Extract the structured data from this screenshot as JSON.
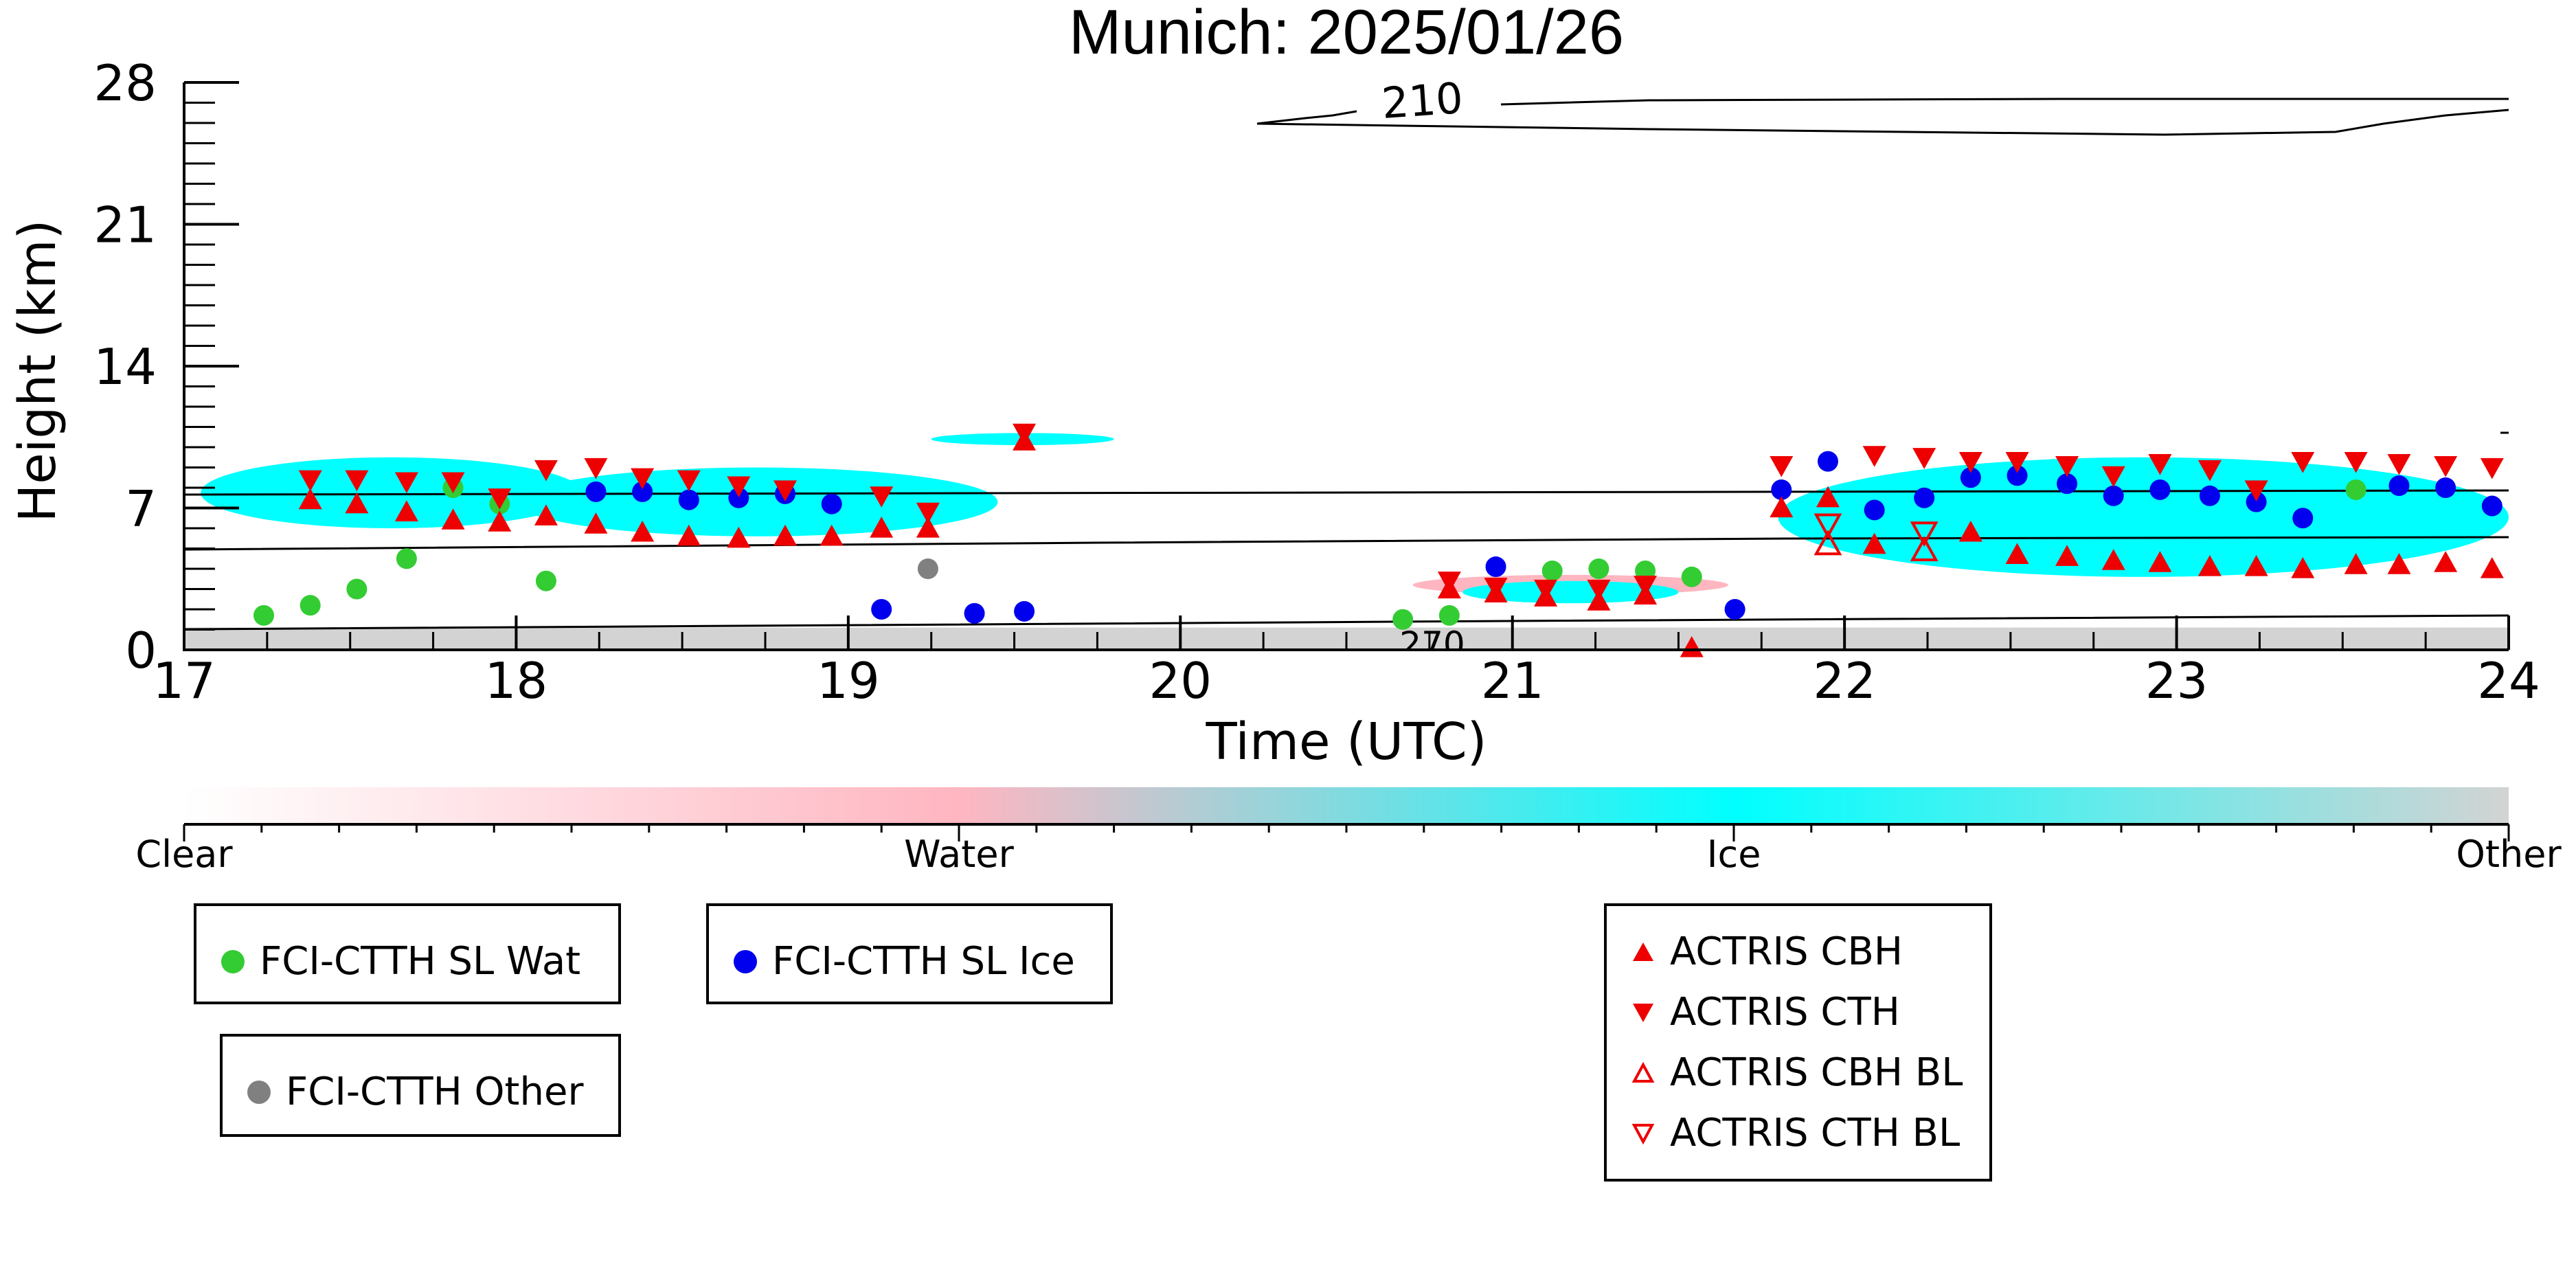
{
  "chart_data": {
    "type": "scatter",
    "title": "Munich: 2025/01/26",
    "xlabel": "Time (UTC)",
    "ylabel": "Height (km)",
    "xlim": [
      17,
      24
    ],
    "ylim": [
      0,
      28
    ],
    "xticks": [
      "17",
      "18",
      "19",
      "20",
      "21",
      "22",
      "23",
      "24"
    ],
    "yticks": [
      "0",
      "7",
      "14",
      "21",
      "28"
    ],
    "grid": false,
    "colorbar": {
      "labels": [
        "Clear",
        "Water",
        "Ice",
        "Other"
      ],
      "colors": [
        "#ffffff",
        "#ffb6c1",
        "#00ffff",
        "#d3d3d3"
      ]
    },
    "contours": [
      {
        "label": "210",
        "level_km": 27.0
      },
      {
        "label": "270",
        "level_km": 0.4
      }
    ],
    "mask_regions": [
      {
        "class": "Ice",
        "x": [
          17.05,
          18.2
        ],
        "y": [
          6.0,
          9.5
        ]
      },
      {
        "class": "Ice",
        "x": [
          18.0,
          19.45
        ],
        "y": [
          5.6,
          9.0
        ]
      },
      {
        "class": "Ice",
        "x": [
          19.25,
          19.8
        ],
        "y": [
          10.1,
          10.7
        ]
      },
      {
        "class": "Water",
        "x": [
          20.7,
          21.65
        ],
        "y": [
          2.7,
          3.7
        ]
      },
      {
        "class": "Ice",
        "x": [
          20.85,
          21.5
        ],
        "y": [
          2.3,
          3.4
        ]
      },
      {
        "class": "Ice",
        "x": [
          21.8,
          24.0
        ],
        "y": [
          3.6,
          9.5
        ]
      },
      {
        "class": "Other",
        "x": [
          17.0,
          24.0
        ],
        "y": [
          0.0,
          1.1
        ]
      }
    ],
    "series": [
      {
        "name": "FCI-CTTH SL Wat",
        "color": "#33cc33",
        "marker": "circle",
        "points": [
          [
            17.24,
            1.7
          ],
          [
            17.38,
            2.2
          ],
          [
            17.52,
            3.0
          ],
          [
            17.67,
            4.5
          ],
          [
            17.81,
            8.0
          ],
          [
            17.95,
            7.2
          ],
          [
            18.09,
            3.4
          ],
          [
            20.67,
            1.5
          ],
          [
            20.81,
            1.7
          ],
          [
            21.12,
            3.9
          ],
          [
            21.26,
            4.0
          ],
          [
            21.4,
            3.9
          ],
          [
            21.54,
            3.6
          ],
          [
            23.54,
            7.9
          ]
        ]
      },
      {
        "name": "FCI-CTTH SL Ice",
        "color": "#0000ee",
        "marker": "circle",
        "points": [
          [
            18.24,
            7.8
          ],
          [
            18.38,
            7.8
          ],
          [
            18.52,
            7.4
          ],
          [
            18.67,
            7.5
          ],
          [
            18.81,
            7.7
          ],
          [
            18.95,
            7.2
          ],
          [
            19.1,
            2.0
          ],
          [
            19.38,
            1.8
          ],
          [
            19.53,
            1.9
          ],
          [
            20.95,
            4.1
          ],
          [
            21.67,
            2.0
          ],
          [
            21.81,
            7.9
          ],
          [
            21.95,
            9.3
          ],
          [
            22.09,
            6.9
          ],
          [
            22.24,
            7.5
          ],
          [
            22.38,
            8.5
          ],
          [
            22.52,
            8.6
          ],
          [
            22.67,
            8.2
          ],
          [
            22.81,
            7.6
          ],
          [
            22.95,
            7.9
          ],
          [
            23.1,
            7.6
          ],
          [
            23.24,
            7.3
          ],
          [
            23.38,
            6.5
          ],
          [
            23.67,
            8.1
          ],
          [
            23.81,
            8.0
          ],
          [
            23.95,
            7.1
          ]
        ]
      },
      {
        "name": "FCI-CTTH Other",
        "color": "#808080",
        "marker": "circle",
        "points": [
          [
            19.24,
            4.0
          ]
        ]
      },
      {
        "name": "ACTRIS CBH",
        "color": "#ee0000",
        "marker": "triangle-up",
        "points": [
          [
            17.38,
            7.4
          ],
          [
            17.52,
            7.2
          ],
          [
            17.67,
            6.8
          ],
          [
            17.81,
            6.4
          ],
          [
            17.95,
            6.3
          ],
          [
            18.09,
            6.6
          ],
          [
            18.24,
            6.2
          ],
          [
            18.38,
            5.8
          ],
          [
            18.52,
            5.6
          ],
          [
            18.67,
            5.5
          ],
          [
            18.81,
            5.6
          ],
          [
            18.95,
            5.6
          ],
          [
            19.1,
            6.0
          ],
          [
            19.24,
            6.0
          ],
          [
            19.53,
            10.3
          ],
          [
            20.81,
            3.0
          ],
          [
            20.95,
            2.8
          ],
          [
            21.1,
            2.6
          ],
          [
            21.26,
            2.4
          ],
          [
            21.4,
            2.7
          ],
          [
            21.54,
            0.1
          ],
          [
            21.81,
            7.0
          ],
          [
            21.95,
            7.5
          ],
          [
            22.09,
            5.2
          ],
          [
            22.38,
            5.8
          ],
          [
            22.52,
            4.7
          ],
          [
            22.67,
            4.6
          ],
          [
            22.81,
            4.4
          ],
          [
            22.95,
            4.3
          ],
          [
            23.1,
            4.1
          ],
          [
            23.24,
            4.1
          ],
          [
            23.38,
            4.0
          ],
          [
            23.54,
            4.2
          ],
          [
            23.67,
            4.2
          ],
          [
            23.81,
            4.3
          ],
          [
            23.95,
            4.0
          ]
        ]
      },
      {
        "name": "ACTRIS CTH",
        "color": "#ee0000",
        "marker": "triangle-down",
        "points": [
          [
            17.38,
            8.4
          ],
          [
            17.52,
            8.4
          ],
          [
            17.67,
            8.3
          ],
          [
            17.81,
            8.3
          ],
          [
            17.95,
            7.5
          ],
          [
            18.09,
            8.9
          ],
          [
            18.24,
            9.0
          ],
          [
            18.38,
            8.5
          ],
          [
            18.52,
            8.4
          ],
          [
            18.67,
            8.1
          ],
          [
            18.81,
            7.9
          ],
          [
            19.1,
            7.6
          ],
          [
            19.24,
            6.8
          ],
          [
            19.53,
            10.7
          ],
          [
            20.81,
            3.4
          ],
          [
            20.95,
            3.1
          ],
          [
            21.1,
            3.0
          ],
          [
            21.26,
            3.0
          ],
          [
            21.4,
            3.2
          ],
          [
            21.81,
            9.1
          ],
          [
            22.09,
            9.6
          ],
          [
            22.24,
            9.5
          ],
          [
            22.38,
            9.3
          ],
          [
            22.52,
            9.3
          ],
          [
            22.67,
            9.1
          ],
          [
            22.81,
            8.6
          ],
          [
            22.95,
            9.2
          ],
          [
            23.1,
            8.9
          ],
          [
            23.24,
            7.9
          ],
          [
            23.38,
            9.3
          ],
          [
            23.54,
            9.3
          ],
          [
            23.67,
            9.2
          ],
          [
            23.81,
            9.1
          ],
          [
            23.95,
            9.0
          ]
        ]
      },
      {
        "name": "ACTRIS CBH BL",
        "color": "#ee0000",
        "marker": "triangle-up-open",
        "points": [
          [
            21.95,
            5.2
          ],
          [
            22.24,
            4.9
          ]
        ]
      },
      {
        "name": "ACTRIS CTH BL",
        "color": "#ee0000",
        "marker": "triangle-down-open",
        "points": [
          [
            21.95,
            6.2
          ],
          [
            22.24,
            5.8
          ]
        ]
      }
    ]
  }
}
